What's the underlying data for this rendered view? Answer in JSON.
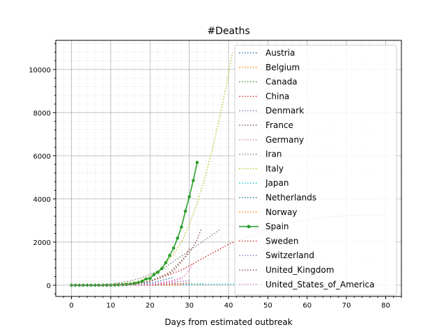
{
  "chart_data": {
    "type": "line",
    "title": "#Deaths",
    "xlabel": "Days from estimated outbreak",
    "ylabel": "",
    "xlim": [
      -4,
      84
    ],
    "ylim": [
      -520,
      11350
    ],
    "x_ticks": [
      0,
      10,
      20,
      30,
      40,
      50,
      60,
      70,
      80
    ],
    "x_tick_labels": [
      "0",
      "10",
      "20",
      "30",
      "40",
      "50",
      "60",
      "70",
      "80"
    ],
    "y_ticks": [
      0,
      2000,
      4000,
      6000,
      8000,
      10000
    ],
    "y_tick_labels": [
      "0",
      "2000",
      "4000",
      "6000",
      "8000",
      "10000"
    ],
    "grid": true,
    "minor_grid": true,
    "legend_position": "right",
    "series": [
      {
        "name": "Austria",
        "color": "#1f77b4",
        "style": "dotted",
        "x": [
          0,
          10,
          15,
          20,
          22,
          24,
          25,
          26,
          27
        ],
        "y": [
          0,
          0,
          1,
          10,
          20,
          40,
          55,
          70,
          80
        ]
      },
      {
        "name": "Belgium",
        "color": "#ff7f0e",
        "style": "dotted",
        "x": [
          0,
          10,
          15,
          20,
          22,
          24,
          25,
          26
        ],
        "y": [
          0,
          0,
          5,
          40,
          70,
          100,
          130,
          150
        ]
      },
      {
        "name": "Canada",
        "color": "#2ca02c",
        "style": "dotted",
        "x": [
          0,
          10,
          20,
          25,
          28,
          30,
          32,
          34
        ],
        "y": [
          0,
          0,
          5,
          15,
          30,
          45,
          55,
          60
        ]
      },
      {
        "name": "China",
        "color": "#d62728",
        "style": "dotted",
        "x": [
          0,
          5,
          10,
          15,
          18,
          20,
          22,
          25,
          28,
          30,
          32,
          35,
          38,
          40,
          45,
          50,
          55,
          60,
          65,
          70,
          75,
          80
        ],
        "y": [
          0,
          5,
          20,
          60,
          120,
          200,
          300,
          500,
          700,
          900,
          1100,
          1400,
          1700,
          1900,
          2250,
          2600,
          2850,
          3050,
          3150,
          3230,
          3260,
          3270
        ]
      },
      {
        "name": "Denmark",
        "color": "#9467bd",
        "style": "dotted",
        "x": [
          0,
          10,
          15,
          20,
          22,
          24
        ],
        "y": [
          0,
          0,
          2,
          10,
          20,
          30
        ]
      },
      {
        "name": "France",
        "color": "#8c564b",
        "style": "dotted",
        "x": [
          0,
          10,
          15,
          20,
          22,
          24,
          25,
          26,
          27,
          28,
          29,
          30
        ],
        "y": [
          0,
          5,
          40,
          200,
          330,
          450,
          560,
          670,
          860,
          1100,
          1330,
          1700
        ]
      },
      {
        "name": "Germany",
        "color": "#e377c2",
        "style": "dotted",
        "x": [
          0,
          10,
          15,
          20,
          22,
          24,
          25,
          26,
          27,
          28
        ],
        "y": [
          0,
          0,
          10,
          60,
          100,
          160,
          200,
          250,
          300,
          350
        ]
      },
      {
        "name": "Iran",
        "color": "#7f7f7f",
        "style": "dotted",
        "x": [
          0,
          5,
          10,
          15,
          18,
          20,
          22,
          24,
          26,
          28,
          30,
          32,
          34,
          36,
          38
        ],
        "y": [
          0,
          10,
          50,
          200,
          350,
          500,
          650,
          850,
          1100,
          1350,
          1600,
          1850,
          2100,
          2350,
          2600
        ]
      },
      {
        "name": "Italy",
        "color": "#bcbd22",
        "style": "dotted",
        "x": [
          0,
          5,
          10,
          15,
          18,
          20,
          22,
          24,
          26,
          28,
          30,
          32,
          34,
          36,
          38,
          40,
          41
        ],
        "y": [
          0,
          2,
          20,
          110,
          230,
          400,
          650,
          1000,
          1450,
          2000,
          2800,
          3800,
          5000,
          6400,
          8000,
          9800,
          10780
        ]
      },
      {
        "name": "Japan",
        "color": "#17becf",
        "style": "dotted",
        "x": [
          0,
          10,
          20,
          30,
          40,
          45,
          50,
          55
        ],
        "y": [
          0,
          0,
          10,
          30,
          45,
          50,
          55,
          60
        ]
      },
      {
        "name": "Netherlands",
        "color": "#1f77b4",
        "style": "dotted",
        "x": [
          0,
          10,
          15,
          20,
          22,
          24,
          26
        ],
        "y": [
          0,
          0,
          20,
          100,
          180,
          270,
          360
        ]
      },
      {
        "name": "Norway",
        "color": "#ff7f0e",
        "style": "dotted",
        "x": [
          0,
          10,
          20,
          25,
          28
        ],
        "y": [
          0,
          0,
          5,
          10,
          15
        ]
      },
      {
        "name": "Spain",
        "color": "#2ca02c",
        "style": "solid",
        "marker": true,
        "x": [
          0,
          1,
          2,
          3,
          4,
          5,
          6,
          7,
          8,
          9,
          10,
          11,
          12,
          13,
          14,
          15,
          16,
          17,
          18,
          19,
          20,
          21,
          22,
          23,
          24,
          25,
          26,
          27,
          28,
          29,
          30,
          31,
          32
        ],
        "y": [
          0,
          0,
          0,
          0,
          0,
          0,
          0,
          0,
          1,
          3,
          5,
          10,
          17,
          28,
          35,
          54,
          84,
          121,
          190,
          290,
          310,
          490,
          600,
          770,
          1040,
          1380,
          1720,
          2180,
          2700,
          3430,
          4100,
          4850,
          5690
        ]
      },
      {
        "name": "Sweden",
        "color": "#d62728",
        "style": "dotted",
        "x": [
          0,
          10,
          20,
          25,
          28,
          30
        ],
        "y": [
          0,
          0,
          10,
          40,
          70,
          100
        ]
      },
      {
        "name": "Switzerland",
        "color": "#9467bd",
        "style": "dotted",
        "x": [
          0,
          10,
          15,
          20,
          24,
          27,
          30
        ],
        "y": [
          0,
          0,
          10,
          40,
          100,
          160,
          220
        ]
      },
      {
        "name": "United_Kingdom",
        "color": "#8c564b",
        "style": "dotted",
        "x": [
          0,
          10,
          15,
          20,
          25,
          30,
          32,
          33
        ],
        "y": [
          0,
          5,
          30,
          160,
          600,
          1500,
          2100,
          2600
        ]
      },
      {
        "name": "United_States_of_America",
        "color": "#e377c2",
        "style": "dotted",
        "x": [
          0,
          10,
          20,
          25,
          28,
          29,
          30,
          31
        ],
        "y": [
          0,
          5,
          40,
          150,
          300,
          480,
          700,
          1000
        ]
      }
    ]
  }
}
